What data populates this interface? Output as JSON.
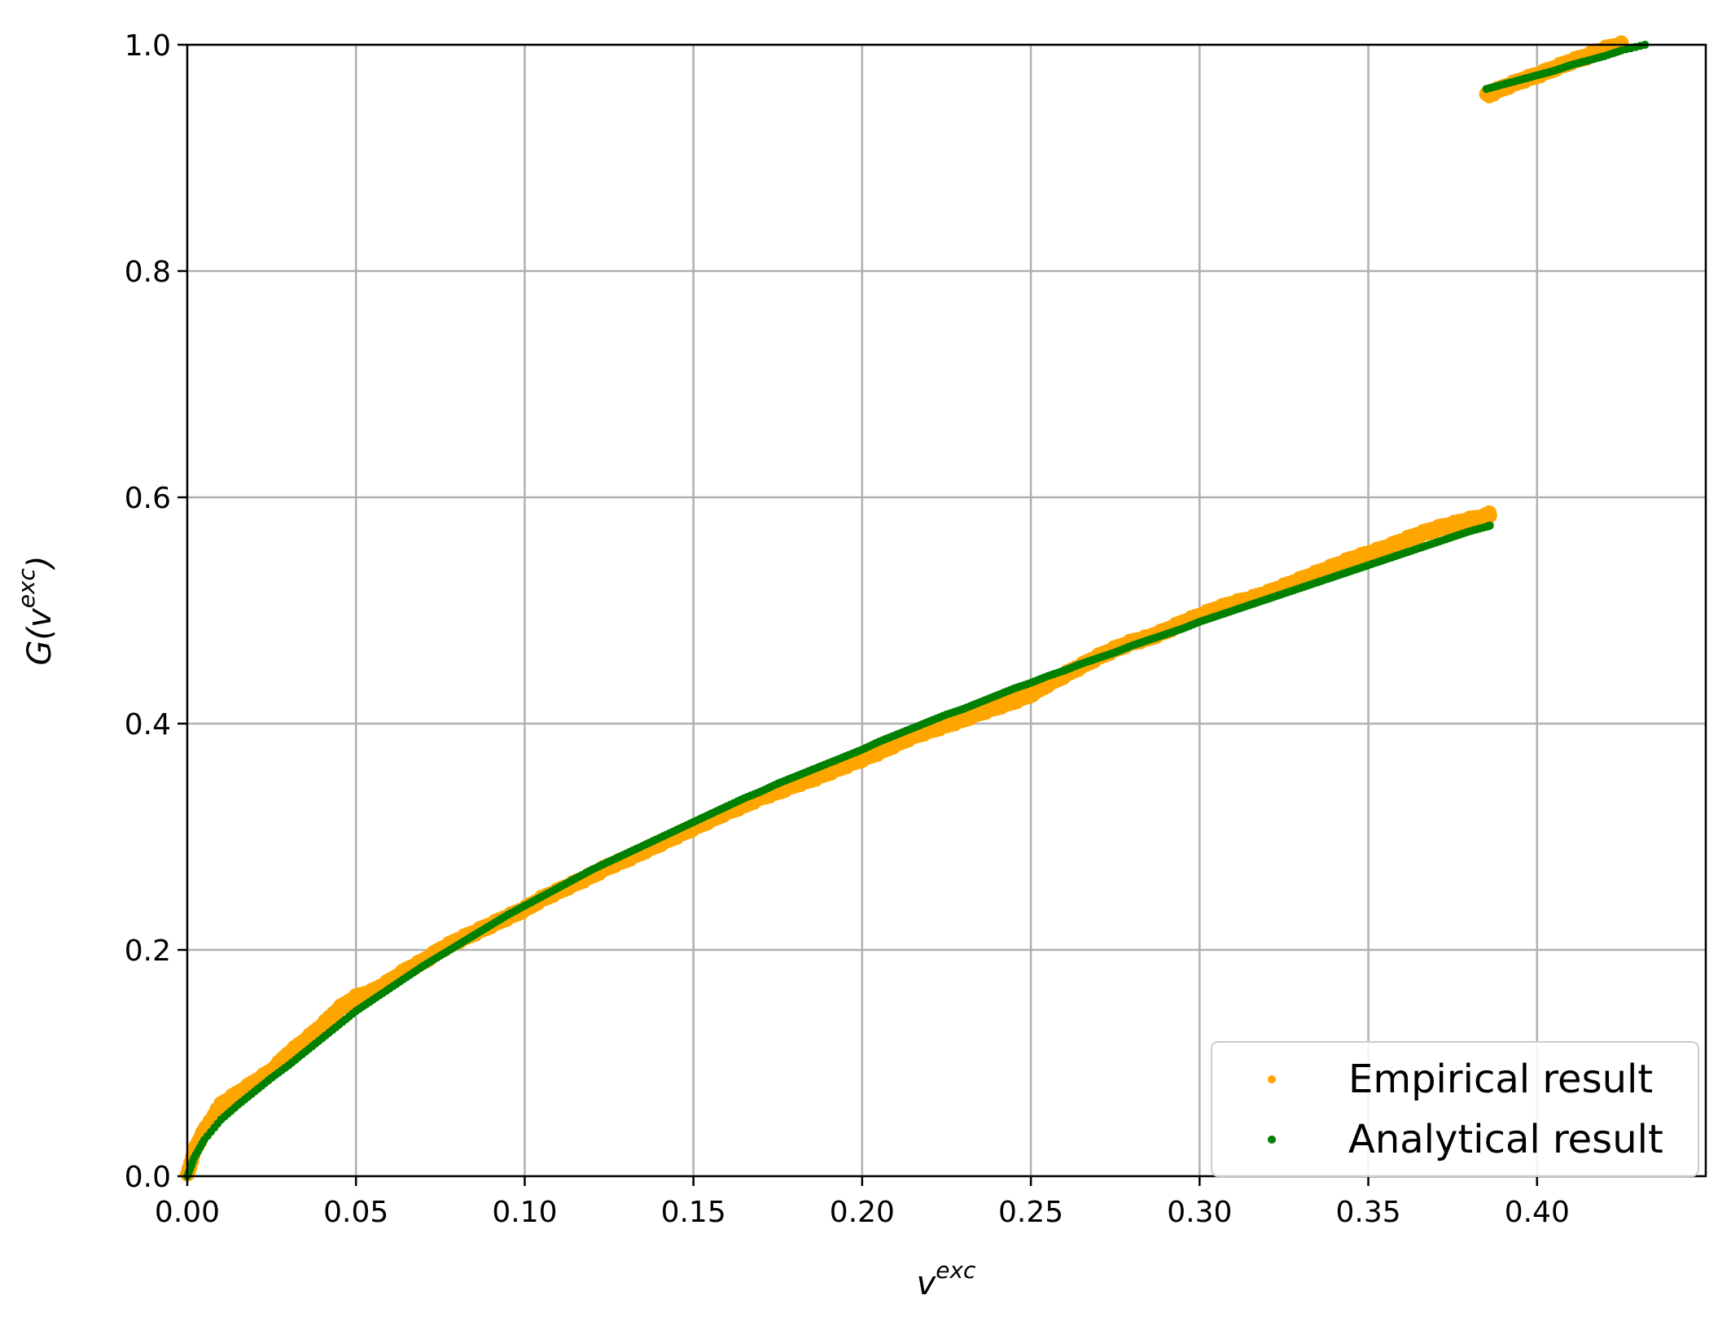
{
  "chart_data": {
    "type": "scatter",
    "title": "",
    "xlabel_base": "v",
    "xlabel_sup": "exc",
    "ylabel_prefix": "G(",
    "ylabel_base": "v",
    "ylabel_sup": "exc",
    "ylabel_suffix": ")",
    "xlim": [
      0.0,
      0.45
    ],
    "ylim": [
      0.0,
      1.0
    ],
    "xticks": [
      0.0,
      0.05,
      0.1,
      0.15,
      0.2,
      0.25,
      0.3,
      0.35,
      0.4
    ],
    "xtick_labels": [
      "0.00",
      "0.05",
      "0.10",
      "0.15",
      "0.20",
      "0.25",
      "0.30",
      "0.35",
      "0.40"
    ],
    "yticks": [
      0.0,
      0.2,
      0.4,
      0.6,
      0.8,
      1.0
    ],
    "ytick_labels": [
      "0.0",
      "0.2",
      "0.4",
      "0.6",
      "0.8",
      "1.0"
    ],
    "grid": true,
    "legend_position": "lower-right",
    "series": [
      {
        "name": "Empirical result",
        "color": "#ffa500",
        "points": [
          [
            0.0,
            0.0
          ],
          [
            0.002,
            0.022
          ],
          [
            0.005,
            0.04
          ],
          [
            0.01,
            0.063
          ],
          [
            0.015,
            0.073
          ],
          [
            0.02,
            0.083
          ],
          [
            0.025,
            0.093
          ],
          [
            0.03,
            0.108
          ],
          [
            0.035,
            0.12
          ],
          [
            0.04,
            0.133
          ],
          [
            0.045,
            0.148
          ],
          [
            0.05,
            0.158
          ],
          [
            0.055,
            0.163
          ],
          [
            0.06,
            0.172
          ],
          [
            0.065,
            0.182
          ],
          [
            0.07,
            0.19
          ],
          [
            0.075,
            0.2
          ],
          [
            0.08,
            0.208
          ],
          [
            0.085,
            0.215
          ],
          [
            0.09,
            0.222
          ],
          [
            0.095,
            0.229
          ],
          [
            0.1,
            0.236
          ],
          [
            0.105,
            0.245
          ],
          [
            0.11,
            0.252
          ],
          [
            0.115,
            0.259
          ],
          [
            0.12,
            0.266
          ],
          [
            0.125,
            0.274
          ],
          [
            0.13,
            0.28
          ],
          [
            0.135,
            0.287
          ],
          [
            0.14,
            0.294
          ],
          [
            0.145,
            0.301
          ],
          [
            0.15,
            0.308
          ],
          [
            0.155,
            0.315
          ],
          [
            0.16,
            0.322
          ],
          [
            0.165,
            0.328
          ],
          [
            0.17,
            0.335
          ],
          [
            0.175,
            0.34
          ],
          [
            0.18,
            0.346
          ],
          [
            0.185,
            0.351
          ],
          [
            0.19,
            0.357
          ],
          [
            0.195,
            0.363
          ],
          [
            0.2,
            0.369
          ],
          [
            0.205,
            0.375
          ],
          [
            0.21,
            0.382
          ],
          [
            0.215,
            0.389
          ],
          [
            0.22,
            0.394
          ],
          [
            0.225,
            0.399
          ],
          [
            0.23,
            0.404
          ],
          [
            0.235,
            0.41
          ],
          [
            0.24,
            0.415
          ],
          [
            0.245,
            0.42
          ],
          [
            0.25,
            0.426
          ],
          [
            0.255,
            0.435
          ],
          [
            0.26,
            0.443
          ],
          [
            0.265,
            0.451
          ],
          [
            0.27,
            0.459
          ],
          [
            0.275,
            0.466
          ],
          [
            0.28,
            0.472
          ],
          [
            0.285,
            0.476
          ],
          [
            0.29,
            0.482
          ],
          [
            0.295,
            0.489
          ],
          [
            0.3,
            0.495
          ],
          [
            0.305,
            0.501
          ],
          [
            0.31,
            0.506
          ],
          [
            0.315,
            0.51
          ],
          [
            0.32,
            0.515
          ],
          [
            0.325,
            0.521
          ],
          [
            0.33,
            0.527
          ],
          [
            0.335,
            0.533
          ],
          [
            0.34,
            0.539
          ],
          [
            0.345,
            0.545
          ],
          [
            0.35,
            0.55
          ],
          [
            0.355,
            0.555
          ],
          [
            0.36,
            0.561
          ],
          [
            0.365,
            0.567
          ],
          [
            0.37,
            0.572
          ],
          [
            0.375,
            0.576
          ],
          [
            0.38,
            0.58
          ],
          [
            0.385,
            0.583
          ],
          [
            0.386,
            0.585
          ],
          [
            0.385,
            0.955
          ],
          [
            0.39,
            0.962
          ],
          [
            0.395,
            0.968
          ],
          [
            0.4,
            0.973
          ],
          [
            0.405,
            0.979
          ],
          [
            0.41,
            0.985
          ],
          [
            0.415,
            0.99
          ],
          [
            0.42,
            0.996
          ],
          [
            0.425,
            1.0
          ]
        ]
      },
      {
        "name": "Analytical result",
        "color": "#008000",
        "points": [
          [
            0.0,
            0.0
          ],
          [
            0.002,
            0.016
          ],
          [
            0.005,
            0.032
          ],
          [
            0.01,
            0.05
          ],
          [
            0.015,
            0.063
          ],
          [
            0.02,
            0.075
          ],
          [
            0.025,
            0.087
          ],
          [
            0.03,
            0.098
          ],
          [
            0.035,
            0.11
          ],
          [
            0.04,
            0.122
          ],
          [
            0.045,
            0.134
          ],
          [
            0.05,
            0.146
          ],
          [
            0.055,
            0.156
          ],
          [
            0.06,
            0.166
          ],
          [
            0.065,
            0.176
          ],
          [
            0.07,
            0.186
          ],
          [
            0.075,
            0.195
          ],
          [
            0.08,
            0.204
          ],
          [
            0.085,
            0.213
          ],
          [
            0.09,
            0.222
          ],
          [
            0.095,
            0.231
          ],
          [
            0.1,
            0.239
          ],
          [
            0.105,
            0.247
          ],
          [
            0.11,
            0.255
          ],
          [
            0.115,
            0.263
          ],
          [
            0.12,
            0.271
          ],
          [
            0.125,
            0.278
          ],
          [
            0.13,
            0.285
          ],
          [
            0.135,
            0.292
          ],
          [
            0.14,
            0.299
          ],
          [
            0.145,
            0.306
          ],
          [
            0.15,
            0.313
          ],
          [
            0.155,
            0.32
          ],
          [
            0.16,
            0.327
          ],
          [
            0.165,
            0.334
          ],
          [
            0.17,
            0.34
          ],
          [
            0.175,
            0.347
          ],
          [
            0.18,
            0.353
          ],
          [
            0.185,
            0.359
          ],
          [
            0.19,
            0.365
          ],
          [
            0.195,
            0.371
          ],
          [
            0.2,
            0.377
          ],
          [
            0.205,
            0.384
          ],
          [
            0.21,
            0.39
          ],
          [
            0.215,
            0.396
          ],
          [
            0.22,
            0.402
          ],
          [
            0.225,
            0.408
          ],
          [
            0.23,
            0.413
          ],
          [
            0.235,
            0.419
          ],
          [
            0.24,
            0.425
          ],
          [
            0.245,
            0.431
          ],
          [
            0.25,
            0.436
          ],
          [
            0.255,
            0.442
          ],
          [
            0.26,
            0.447
          ],
          [
            0.265,
            0.453
          ],
          [
            0.27,
            0.458
          ],
          [
            0.275,
            0.463
          ],
          [
            0.28,
            0.469
          ],
          [
            0.285,
            0.474
          ],
          [
            0.29,
            0.479
          ],
          [
            0.295,
            0.484
          ],
          [
            0.3,
            0.49
          ],
          [
            0.305,
            0.495
          ],
          [
            0.31,
            0.5
          ],
          [
            0.315,
            0.505
          ],
          [
            0.32,
            0.51
          ],
          [
            0.325,
            0.515
          ],
          [
            0.33,
            0.52
          ],
          [
            0.335,
            0.525
          ],
          [
            0.34,
            0.53
          ],
          [
            0.345,
            0.535
          ],
          [
            0.35,
            0.54
          ],
          [
            0.355,
            0.545
          ],
          [
            0.36,
            0.55
          ],
          [
            0.365,
            0.555
          ],
          [
            0.37,
            0.56
          ],
          [
            0.375,
            0.565
          ],
          [
            0.38,
            0.57
          ],
          [
            0.385,
            0.574
          ],
          [
            0.386,
            0.575
          ],
          [
            0.385,
            0.961
          ],
          [
            0.39,
            0.965
          ],
          [
            0.395,
            0.969
          ],
          [
            0.4,
            0.973
          ],
          [
            0.405,
            0.977
          ],
          [
            0.41,
            0.982
          ],
          [
            0.415,
            0.986
          ],
          [
            0.42,
            0.99
          ],
          [
            0.425,
            0.995
          ],
          [
            0.432,
            1.0
          ]
        ]
      }
    ]
  }
}
